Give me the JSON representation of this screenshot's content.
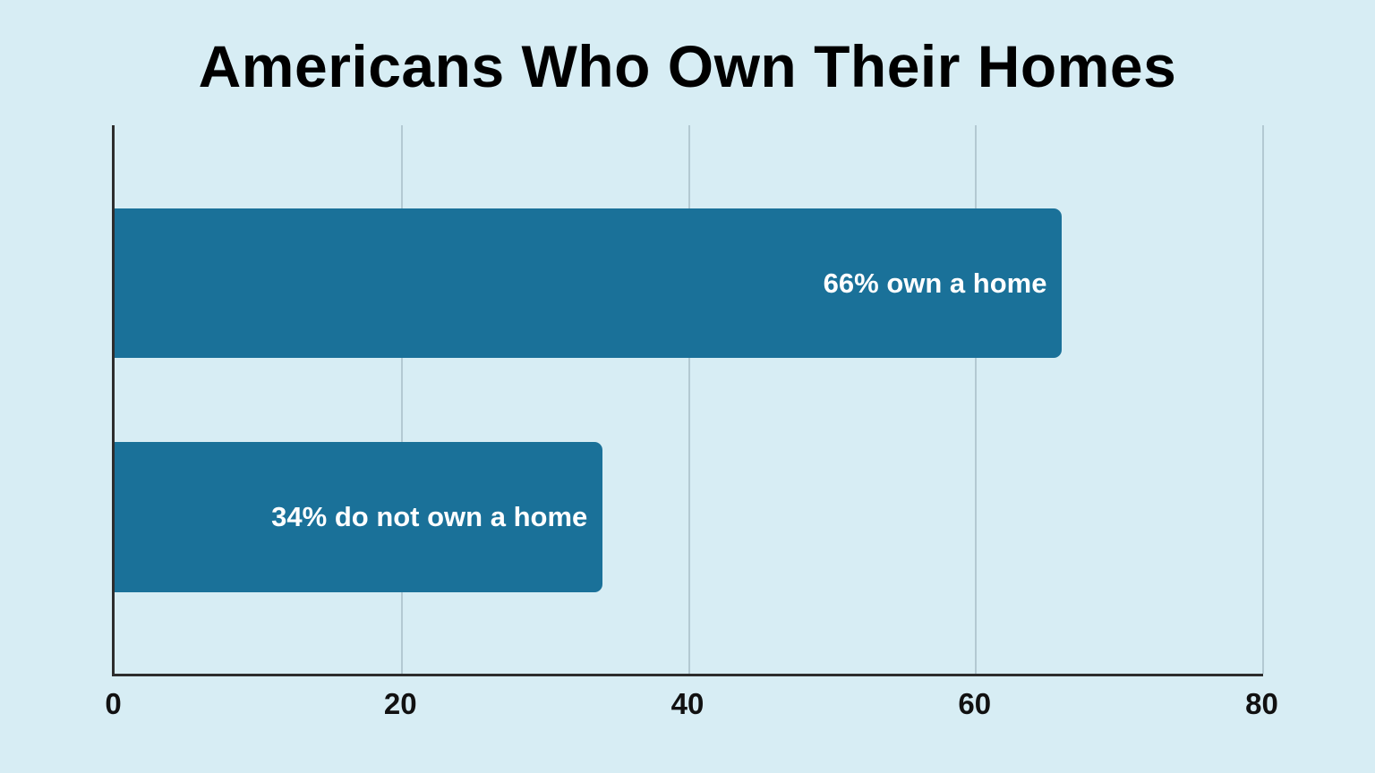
{
  "page": {
    "background": "#d7edf4"
  },
  "chart_data": {
    "type": "bar",
    "orientation": "horizontal",
    "title": "Americans Who Own Their Homes",
    "categories": [
      "Own a home",
      "Do not own a home"
    ],
    "values": [
      66,
      34
    ],
    "bar_labels": [
      "66% own a home",
      "34% do not own a home"
    ],
    "xlim": [
      0,
      80
    ],
    "x_ticks": [
      0,
      20,
      40,
      60,
      80
    ],
    "xlabel": "",
    "ylabel": "",
    "grid": "vertical gridlines at x ticks",
    "legend_position": "none"
  },
  "colors": {
    "background": "#d7edf4",
    "bar": "#1a7199",
    "bar_label_text": "#ffffff",
    "gridline": "#b3c9d2",
    "axis": "#2d2d2d",
    "title_text": "#000000",
    "tick_label_text": "#111111"
  }
}
